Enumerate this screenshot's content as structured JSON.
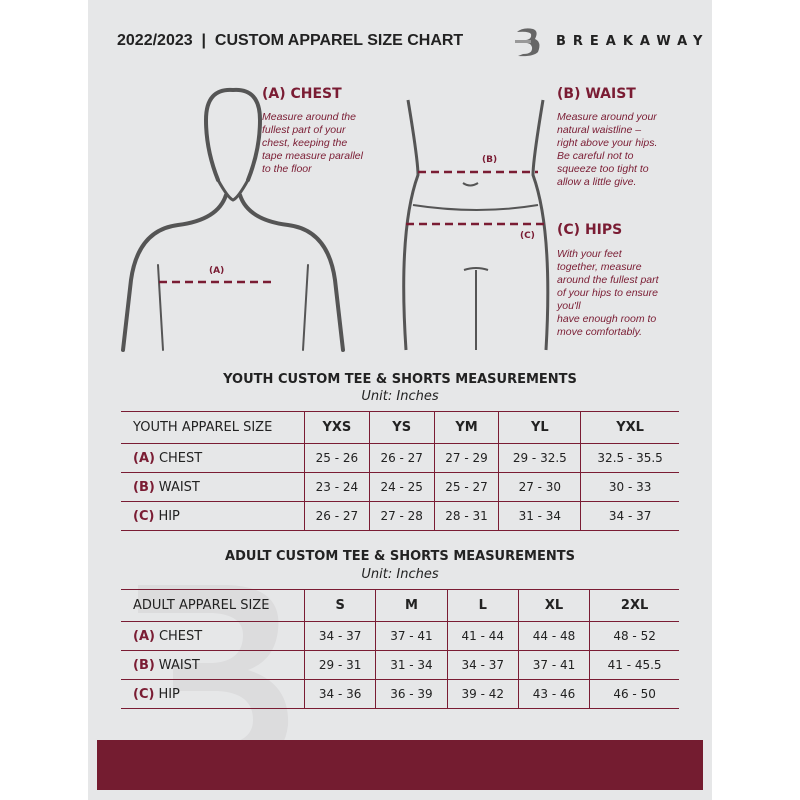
{
  "header": {
    "title": "2022/2023  |  CUSTOM APPAREL SIZE CHART",
    "brand": "BREAKAWAY",
    "logo_letter": "B"
  },
  "guide": {
    "chest": {
      "heading": "(A) CHEST",
      "text": [
        "Measure around the",
        "fullest part of your",
        "chest, keeping the",
        "tape measure parallel",
        "to the floor"
      ],
      "marker": "(A)"
    },
    "waist": {
      "heading": "(B) WAIST",
      "text": [
        "Measure around your",
        "natural waistline –",
        "right above your hips.",
        "Be careful not to",
        "squeeze too tight to",
        "allow a little give."
      ],
      "marker": "(B)"
    },
    "hips": {
      "heading": "(C) HIPS",
      "text": [
        "With your feet",
        "together, measure",
        "around the fullest part",
        "of your hips to ensure",
        "you'll",
        "have enough room to",
        "move comfortably."
      ],
      "marker": "(C)"
    }
  },
  "youth": {
    "title": "YOUTH CUSTOM TEE & SHORTS MEASUREMENTS",
    "unit": "Unit: Inches",
    "size_label": "YOUTH APPAREL SIZE",
    "sizes": [
      "YXS",
      "YS",
      "YM",
      "YL",
      "YXL"
    ],
    "rows": [
      {
        "letter": "(A)",
        "name": "CHEST",
        "values": [
          "25 - 26",
          "26 - 27",
          "27 - 29",
          "29 - 32.5",
          "32.5 - 35.5"
        ]
      },
      {
        "letter": "(B)",
        "name": "WAIST",
        "values": [
          "23 - 24",
          "24 - 25",
          "25 - 27",
          "27 - 30",
          "30 - 33"
        ]
      },
      {
        "letter": "(C)",
        "name": "HIP",
        "values": [
          "26 - 27",
          "27 - 28",
          "28 - 31",
          "31 - 34",
          "34 - 37"
        ]
      }
    ]
  },
  "adult": {
    "title": "ADULT CUSTOM TEE & SHORTS MEASUREMENTS",
    "unit": "Unit: Inches",
    "size_label": "ADULT APPAREL SIZE",
    "sizes": [
      "S",
      "M",
      "L",
      "XL",
      "2XL"
    ],
    "rows": [
      {
        "letter": "(A)",
        "name": "CHEST",
        "values": [
          "34 - 37",
          "37 - 41",
          "41 - 44",
          "44 - 48",
          "48 - 52"
        ]
      },
      {
        "letter": "(B)",
        "name": "WAIST",
        "values": [
          "29 - 31",
          "31 - 34",
          "34 - 37",
          "37 - 41",
          "41 - 45.5"
        ]
      },
      {
        "letter": "(C)",
        "name": "HIP",
        "values": [
          "34 - 36",
          "36 - 39",
          "39 - 42",
          "43 - 46",
          "46 - 50"
        ]
      }
    ]
  },
  "colors": {
    "accent": "#741c30",
    "background": "#e6e7e8"
  }
}
